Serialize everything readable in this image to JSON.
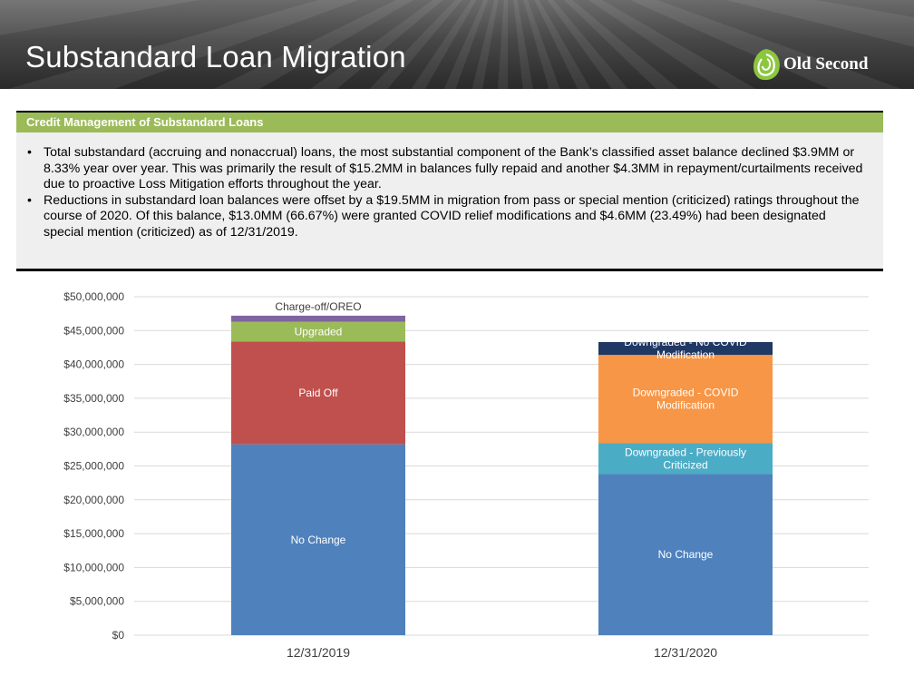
{
  "page": {
    "title": "Substandard Loan Migration",
    "logo_text": "Old Second",
    "section_title": "Credit Management of Substandard Loans",
    "bullets": [
      "Total substandard (accruing and nonaccrual) loans, the most substantial component of the Bank’s classified asset balance declined $3.9MM or 8.33% year over year. This was primarily the result of $15.2MM in balances fully repaid and another $4.3MM in repayment/curtailments received due to proactive Loss Mitigation efforts throughout the year.",
      "Reductions in substandard loan balances were offset by a $19.5MM in migration from pass or special mention (criticized) ratings throughout the course of 2020. Of this balance, $13.0MM (66.67%) were granted COVID relief modifications and $4.6MM (23.49%) had been designated special mention (criticized) as of 12/31/2019."
    ],
    "colors": {
      "header_dark": "#2a2a2a",
      "section_green": "#9bbb59",
      "logo_green": "#8cc63f"
    }
  },
  "chart_data": {
    "type": "bar",
    "stacked": true,
    "categories": [
      "12/31/2019",
      "12/31/2020"
    ],
    "ylim": [
      0,
      50000000
    ],
    "yticks": [
      0,
      5000000,
      10000000,
      15000000,
      20000000,
      25000000,
      30000000,
      35000000,
      40000000,
      45000000,
      50000000
    ],
    "ytick_labels": [
      "$0",
      "$5,000,000",
      "$10,000,000",
      "$15,000,000",
      "$20,000,000",
      "$25,000,000",
      "$30,000,000",
      "$35,000,000",
      "$40,000,000",
      "$45,000,000",
      "$50,000,000"
    ],
    "grid": true,
    "legend": "none",
    "series": [
      {
        "name": "No Change",
        "color": "#4f81bd",
        "values": [
          28200000,
          23800000
        ],
        "labels": [
          "No Change",
          "No Change"
        ]
      },
      {
        "name": "Paid Off",
        "color": "#c0504d",
        "values": [
          15200000,
          0
        ],
        "labels": [
          "Paid Off",
          ""
        ]
      },
      {
        "name": "Upgraded",
        "color": "#9bbb59",
        "values": [
          2900000,
          0
        ],
        "labels": [
          "Upgraded",
          ""
        ]
      },
      {
        "name": "Charge-off/OREO",
        "color": "#8064a2",
        "values": [
          900000,
          0
        ],
        "labels": [
          "Charge-off/OREO",
          ""
        ]
      },
      {
        "name": "Downgraded - Previously Criticized",
        "color": "#4bacc6",
        "values": [
          0,
          4600000
        ],
        "labels": [
          "",
          "Downgraded  - Previously Criticized"
        ]
      },
      {
        "name": "Downgraded - COVID Modification",
        "color": "#f79646",
        "values": [
          0,
          13000000
        ],
        "labels": [
          "",
          "Downgraded  - COVID Modification"
        ]
      },
      {
        "name": "Downgraded - No COVID Modification",
        "color": "#1f3864",
        "values": [
          0,
          1900000
        ],
        "labels": [
          "",
          "Downgraded  - No COVID Modification"
        ]
      }
    ]
  }
}
